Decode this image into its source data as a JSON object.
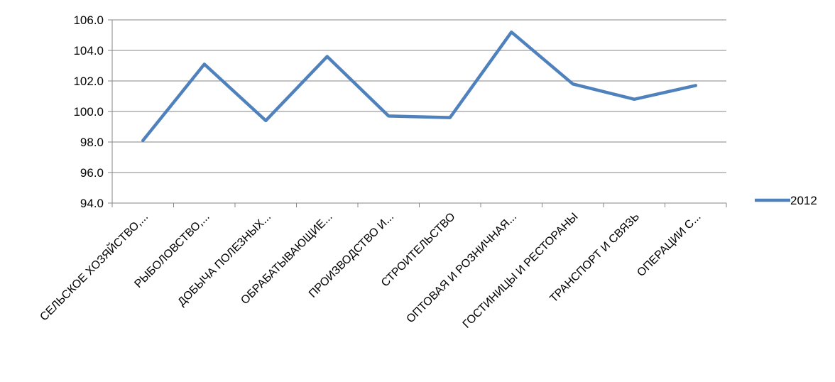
{
  "chart_data": {
    "type": "line",
    "title": "",
    "xlabel": "",
    "ylabel": "",
    "categories": [
      "СЕЛЬСКОЕ ХОЗЯЙСТВО,...",
      "РЫБОЛОВСТВО,...",
      "ДОБЫЧА ПОЛЕЗНЫХ...",
      "ОБРАБАТЫВАЮЩИЕ...",
      "ПРОИЗВОДСТВО И...",
      "СТРОИТЕЛЬСТВО",
      "ОПТОВАЯ  И  РОЗНИЧНАЯ...",
      "ГОСТИНИЦЫ И РЕСТОРАНЫ",
      "ТРАНСПОРТ И СВЯЗЬ",
      "ОПЕРАЦИИ С..."
    ],
    "series": [
      {
        "name": "2012",
        "color": "#4f81bd",
        "values": [
          98.1,
          103.1,
          99.4,
          103.6,
          99.7,
          99.6,
          105.2,
          101.8,
          100.8,
          101.7
        ]
      }
    ],
    "ylim": [
      94.0,
      106.0
    ],
    "ytick_step": 2.0,
    "ytick_labels": [
      "94.0",
      "96.0",
      "98.0",
      "100.0",
      "102.0",
      "104.0",
      "106.0"
    ],
    "grid": true,
    "gridline_color": "#868686",
    "legend_position": "right"
  }
}
